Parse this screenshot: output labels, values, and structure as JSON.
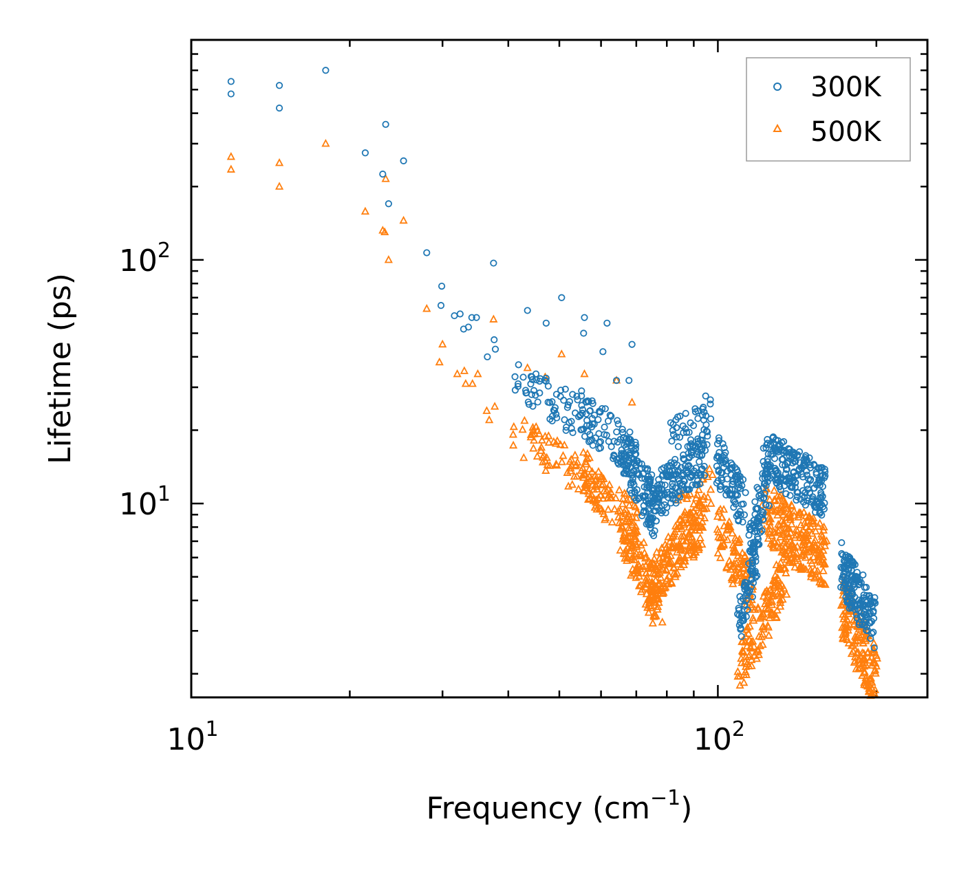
{
  "chart_data": {
    "type": "scatter",
    "title": "",
    "x_scale": "log",
    "y_scale": "log",
    "xlabel": "Frequency (cm",
    "xlabel_sup": "−1",
    "xlabel_end": ")",
    "ylabel": "Lifetime (ps)",
    "xlim": [
      10,
      250
    ],
    "ylim": [
      1.6,
      800
    ],
    "x_ticks": [
      {
        "value": 10,
        "base": "10",
        "exp": "1"
      },
      {
        "value": 100,
        "base": "10",
        "exp": "2"
      }
    ],
    "y_ticks": [
      {
        "value": 10,
        "base": "10",
        "exp": "1"
      },
      {
        "value": 100,
        "base": "10",
        "exp": "2"
      }
    ],
    "legend": {
      "location": "upper-right"
    },
    "series": [
      {
        "name": "300K",
        "marker": "circle",
        "color": "#1f77b4",
        "explicit_points": [
          [
            11.9,
            540
          ],
          [
            11.9,
            480
          ],
          [
            14.7,
            520
          ],
          [
            14.7,
            420
          ],
          [
            18.0,
            600
          ],
          [
            21.4,
            275
          ],
          [
            23.1,
            225
          ],
          [
            23.4,
            360
          ],
          [
            23.7,
            170
          ],
          [
            25.3,
            255
          ],
          [
            28.0,
            107
          ],
          [
            29.9,
            78
          ],
          [
            29.8,
            65
          ],
          [
            31.6,
            59
          ],
          [
            32.4,
            60
          ],
          [
            32.9,
            52
          ],
          [
            33.6,
            53
          ],
          [
            34.1,
            58
          ],
          [
            34.8,
            58
          ],
          [
            37.5,
            97
          ],
          [
            36.5,
            40
          ],
          [
            37.6,
            47
          ],
          [
            37.8,
            43
          ],
          [
            43.5,
            62
          ],
          [
            47.2,
            55
          ],
          [
            50.5,
            70
          ],
          [
            55.8,
            58
          ],
          [
            55.6,
            50
          ],
          [
            61.6,
            55
          ],
          [
            60.5,
            42
          ],
          [
            64.2,
            32
          ],
          [
            67.8,
            32
          ],
          [
            68.7,
            45
          ],
          [
            42.7,
            33
          ],
          [
            44.3,
            28
          ]
        ],
        "generated_segments": [
          {
            "x_from": 41,
            "x_to": 58,
            "y_from": 32,
            "y_to": 21,
            "count": 70,
            "spread": 0.18
          },
          {
            "x_from": 55,
            "x_to": 70,
            "y_from": 24,
            "y_to": 15,
            "count": 80,
            "spread": 0.2
          },
          {
            "x_from": 66,
            "x_to": 76,
            "y_from": 17,
            "y_to": 9,
            "count": 110,
            "spread": 0.22
          },
          {
            "x_from": 74,
            "x_to": 95,
            "y_from": 10,
            "y_to": 16,
            "count": 180,
            "spread": 0.2
          },
          {
            "x_from": 80,
            "x_to": 98,
            "y_from": 18,
            "y_to": 24,
            "count": 40,
            "spread": 0.15
          },
          {
            "x_from": 100,
            "x_to": 112,
            "y_from": 15,
            "y_to": 10,
            "count": 90,
            "spread": 0.2
          },
          {
            "x_from": 110,
            "x_to": 118,
            "y_from": 3.3,
            "y_to": 6,
            "count": 60,
            "spread": 0.15
          },
          {
            "x_from": 115,
            "x_to": 125,
            "y_from": 6.5,
            "y_to": 13,
            "count": 80,
            "spread": 0.2
          },
          {
            "x_from": 122,
            "x_to": 160,
            "y_from": 16,
            "y_to": 11,
            "count": 220,
            "spread": 0.2
          },
          {
            "x_from": 172,
            "x_to": 198,
            "y_from": 5.5,
            "y_to": 3.2,
            "count": 160,
            "spread": 0.22
          }
        ]
      },
      {
        "name": "500K",
        "marker": "triangle",
        "color": "#ff7f0e",
        "explicit_points": [
          [
            11.9,
            265
          ],
          [
            11.9,
            235
          ],
          [
            14.7,
            250
          ],
          [
            14.7,
            200
          ],
          [
            18.0,
            300
          ],
          [
            21.4,
            158
          ],
          [
            23.1,
            132
          ],
          [
            23.3,
            130
          ],
          [
            23.4,
            215
          ],
          [
            23.7,
            100
          ],
          [
            25.3,
            145
          ],
          [
            28.0,
            63
          ],
          [
            29.6,
            38
          ],
          [
            30.0,
            45
          ],
          [
            32.0,
            34
          ],
          [
            33.0,
            35
          ],
          [
            33.2,
            31
          ],
          [
            34.2,
            31
          ],
          [
            35.0,
            34
          ],
          [
            37.5,
            57
          ],
          [
            36.4,
            24
          ],
          [
            36.8,
            22
          ],
          [
            37.7,
            25
          ],
          [
            43.5,
            36
          ],
          [
            47.0,
            33
          ],
          [
            50.5,
            41
          ],
          [
            55.8,
            34
          ],
          [
            64.2,
            32
          ],
          [
            68.7,
            26
          ]
        ],
        "generated_segments": [
          {
            "x_from": 41,
            "x_to": 60,
            "y_from": 19,
            "y_to": 12,
            "count": 80,
            "spread": 0.18
          },
          {
            "x_from": 56,
            "x_to": 70,
            "y_from": 13,
            "y_to": 8,
            "count": 90,
            "spread": 0.2
          },
          {
            "x_from": 66,
            "x_to": 78,
            "y_from": 8,
            "y_to": 3.6,
            "count": 130,
            "spread": 0.22
          },
          {
            "x_from": 74,
            "x_to": 94,
            "y_from": 4.6,
            "y_to": 8.5,
            "count": 190,
            "spread": 0.2
          },
          {
            "x_from": 84,
            "x_to": 98,
            "y_from": 9,
            "y_to": 12,
            "count": 40,
            "spread": 0.15
          },
          {
            "x_from": 100,
            "x_to": 116,
            "y_from": 8,
            "y_to": 4.5,
            "count": 100,
            "spread": 0.22
          },
          {
            "x_from": 110,
            "x_to": 135,
            "y_from": 2.1,
            "y_to": 5.3,
            "count": 130,
            "spread": 0.2
          },
          {
            "x_from": 122,
            "x_to": 160,
            "y_from": 9,
            "y_to": 6,
            "count": 240,
            "spread": 0.25
          },
          {
            "x_from": 172,
            "x_to": 200,
            "y_from": 3.8,
            "y_to": 1.9,
            "count": 170,
            "spread": 0.25
          }
        ]
      }
    ]
  }
}
